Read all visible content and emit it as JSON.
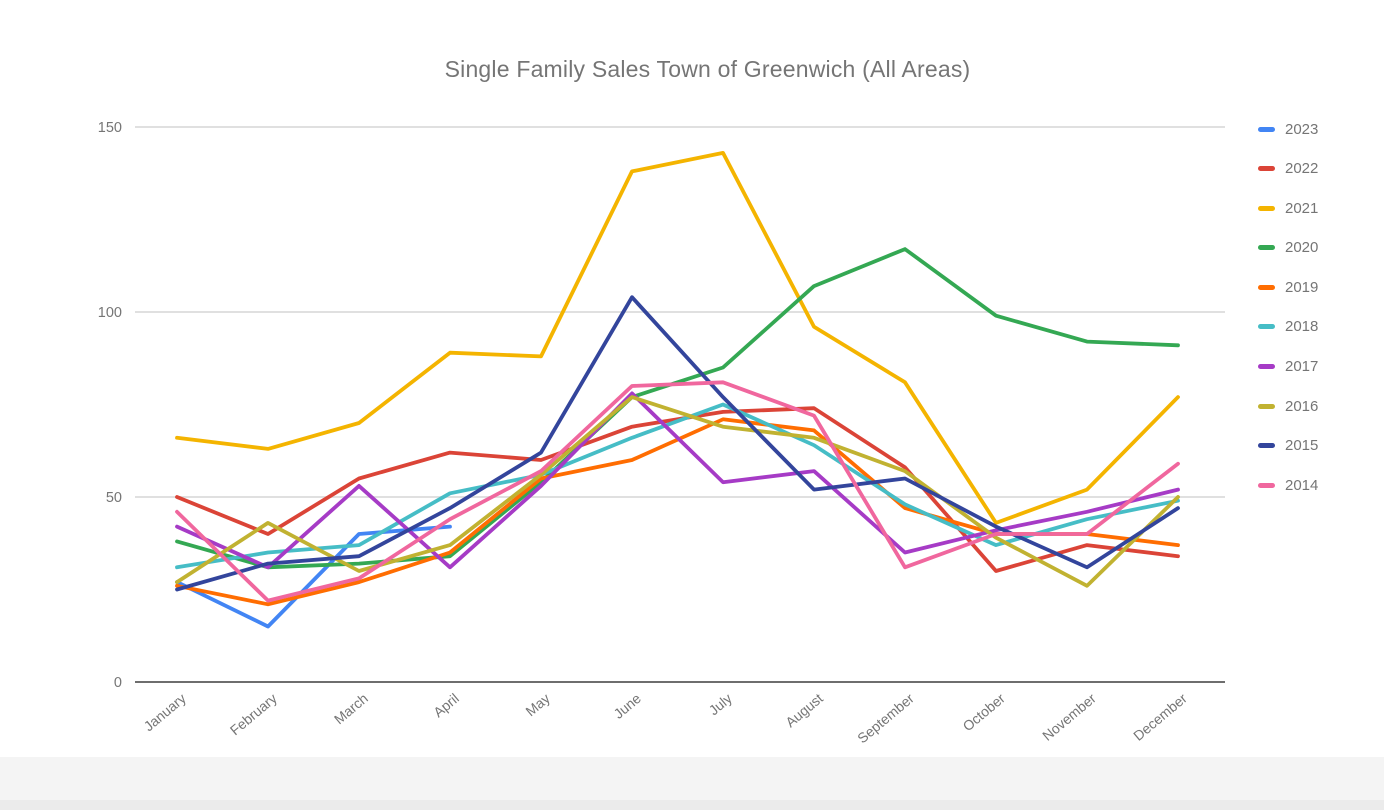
{
  "chart_data": {
    "type": "line",
    "title": "Single Family Sales Town of Greenwich (All Areas)",
    "xlabel": "",
    "ylabel": "",
    "categories": [
      "January",
      "February",
      "March",
      "April",
      "May",
      "June",
      "July",
      "August",
      "September",
      "October",
      "November",
      "December"
    ],
    "y_ticks": [
      0,
      50,
      100,
      150
    ],
    "ylim": [
      0,
      150
    ],
    "grid": true,
    "legend_position": "right",
    "colors": {
      "background": "#ffffff",
      "grid": "#e0e0e0",
      "axis": "#6e6e6e",
      "labels": "#757575",
      "title": "#757575",
      "footer_band": "#f4f4f4"
    },
    "series": [
      {
        "name": "2023",
        "color": "#4285F4",
        "values": [
          27,
          15,
          40,
          42,
          null,
          null,
          null,
          null,
          null,
          null,
          null,
          null
        ]
      },
      {
        "name": "2022",
        "color": "#DB4437",
        "values": [
          50,
          40,
          55,
          62,
          60,
          69,
          73,
          74,
          58,
          30,
          37,
          34
        ]
      },
      {
        "name": "2021",
        "color": "#F4B400",
        "values": [
          66,
          63,
          70,
          89,
          88,
          138,
          143,
          96,
          81,
          43,
          52,
          77
        ]
      },
      {
        "name": "2020",
        "color": "#34A853",
        "values": [
          38,
          31,
          32,
          34,
          54,
          77,
          85,
          107,
          117,
          99,
          92,
          91
        ]
      },
      {
        "name": "2019",
        "color": "#FF6D01",
        "values": [
          26,
          21,
          27,
          35,
          55,
          60,
          71,
          68,
          47,
          40,
          40,
          37
        ]
      },
      {
        "name": "2018",
        "color": "#46BDC6",
        "values": [
          31,
          35,
          37,
          51,
          56,
          66,
          75,
          64,
          48,
          37,
          44,
          49
        ]
      },
      {
        "name": "2017",
        "color": "#A63BC6",
        "values": [
          42,
          31,
          53,
          31,
          53,
          78,
          54,
          57,
          35,
          41,
          46,
          52
        ]
      },
      {
        "name": "2016",
        "color": "#C1B231",
        "values": [
          27,
          43,
          30,
          37,
          56,
          77,
          69,
          66,
          57,
          39,
          26,
          50
        ]
      },
      {
        "name": "2015",
        "color": "#33459C",
        "values": [
          25,
          32,
          34,
          47,
          62,
          104,
          77,
          52,
          55,
          42,
          31,
          47
        ]
      },
      {
        "name": "2014",
        "color": "#F0679E",
        "values": [
          46,
          22,
          28,
          44,
          57,
          80,
          81,
          72,
          31,
          40,
          40,
          59
        ]
      }
    ]
  }
}
